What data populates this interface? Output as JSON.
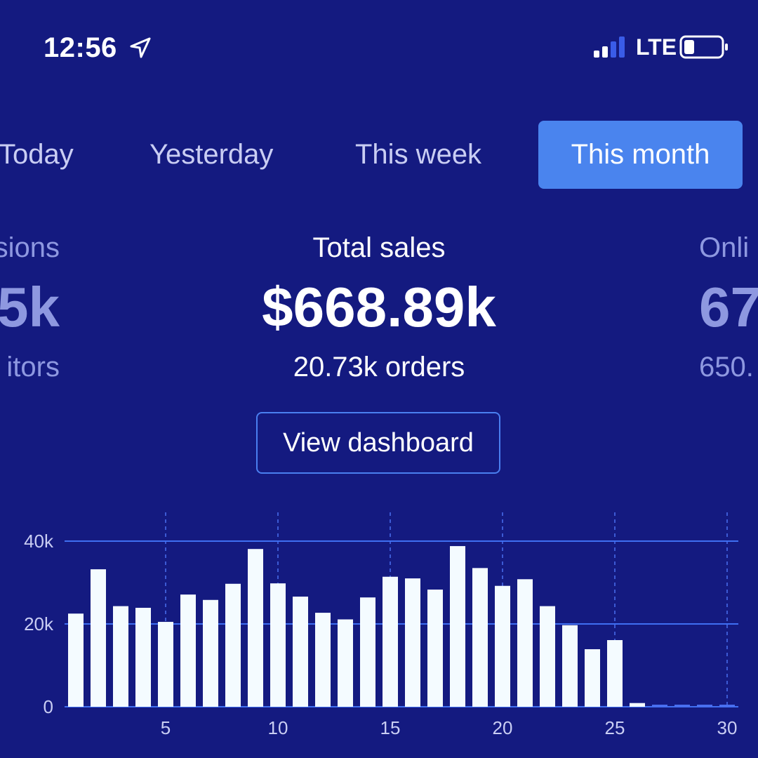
{
  "status_bar": {
    "time": "12:56",
    "network": "LTE",
    "icons": [
      "location-arrow-icon",
      "signal-bars-icon",
      "battery-icon"
    ]
  },
  "tabs": [
    {
      "label": "Today",
      "selected": false
    },
    {
      "label": "Yesterday",
      "selected": false
    },
    {
      "label": "This week",
      "selected": false
    },
    {
      "label": "This month",
      "selected": true
    }
  ],
  "metrics": {
    "left_partial": {
      "label": "sions",
      "value": "5k",
      "sub": "itors"
    },
    "center": {
      "label": "Total sales",
      "value": "$668.89k",
      "sub": "20.73k orders"
    },
    "right_partial": {
      "label": "Onli",
      "value": "67",
      "sub": "650."
    }
  },
  "button": {
    "label": "View dashboard"
  },
  "colors": {
    "background": "#141a80",
    "accent": "#4a84ee",
    "bar": "#f4fbff",
    "muted_text": "#8e98e0"
  },
  "chart_data": {
    "type": "bar",
    "x": [
      1,
      2,
      3,
      4,
      5,
      6,
      7,
      8,
      9,
      10,
      11,
      12,
      13,
      14,
      15,
      16,
      17,
      18,
      19,
      20,
      21,
      22,
      23,
      24,
      25,
      26,
      27,
      28,
      29,
      30
    ],
    "values": [
      22500,
      33200,
      24300,
      23900,
      20500,
      27100,
      25800,
      29700,
      38100,
      29800,
      26600,
      22700,
      21100,
      26400,
      31400,
      31000,
      28300,
      38800,
      33500,
      29200,
      30800,
      24300,
      19700,
      13900,
      16100,
      900,
      0,
      0,
      0,
      0
    ],
    "xticks": [
      "5",
      "10",
      "15",
      "20",
      "25",
      "30"
    ],
    "yticks": [
      "0",
      "20k",
      "40k"
    ],
    "ylim": [
      0,
      40000
    ],
    "grid": true
  }
}
